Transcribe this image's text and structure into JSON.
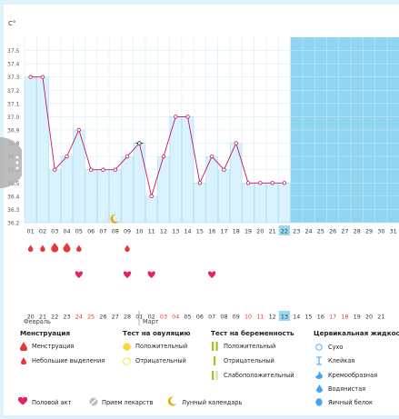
{
  "chart_data": {
    "type": "bar",
    "ylabel": "C°",
    "ylim": [
      36.2,
      37.6
    ],
    "yticks": [
      "37.5",
      "37.4",
      "37.3",
      "37.2",
      "37.1",
      "37.0",
      "36.9",
      "36.8",
      "36.7",
      "36.6",
      "36.5",
      "36.4",
      "36.3",
      "36.2"
    ],
    "day_labels": [
      "01",
      "02",
      "03",
      "04",
      "05",
      "06",
      "07",
      "08",
      "09",
      "10",
      "11",
      "12",
      "13",
      "14",
      "15",
      "16",
      "17",
      "18",
      "19",
      "20",
      "21",
      "22",
      "23",
      "24",
      "25",
      "26",
      "27",
      "28",
      "29",
      "30",
      "31"
    ],
    "values": [
      37.3,
      37.3,
      36.6,
      36.7,
      36.9,
      36.6,
      36.6,
      36.6,
      36.7,
      36.8,
      36.4,
      36.7,
      37.0,
      37.0,
      36.5,
      36.7,
      36.6,
      36.8,
      36.5,
      36.5,
      36.5,
      36.5
    ],
    "marker_colors": [
      "pink",
      "pink",
      "pink",
      "pink",
      "pink",
      "pink",
      "pink",
      "pink",
      "pink",
      "black",
      "pink",
      "pink",
      "pink",
      "pink",
      "pink",
      "pink",
      "pink",
      "pink",
      "pink",
      "pink",
      "pink",
      "pink"
    ],
    "highlight_day_index": 21,
    "moon_day_index": 7,
    "line_color": "#c2185b",
    "bar_color": "#d9f2fd",
    "future_bg": "#8fd5f2",
    "menstruation": [
      {
        "day_index": 0,
        "size": "small"
      },
      {
        "day_index": 1,
        "size": "small"
      },
      {
        "day_index": 2,
        "size": "large"
      },
      {
        "day_index": 3,
        "size": "large"
      },
      {
        "day_index": 4,
        "size": "small"
      },
      {
        "day_index": 8,
        "size": "small"
      }
    ],
    "hearts": [
      4,
      8,
      10,
      15
    ],
    "cycle_labels": [
      "20",
      "21",
      "22",
      "23",
      "24",
      "25",
      "26",
      "27",
      "28",
      "01",
      "02",
      "03",
      "04",
      "05",
      "06",
      "07",
      "08",
      "09",
      "10",
      "11",
      "12",
      "13",
      "14",
      "15",
      "16",
      "17",
      "18",
      "19",
      "20",
      "21"
    ],
    "cycle_red_indices": [
      4,
      5,
      11,
      12,
      18,
      19,
      25,
      26
    ],
    "cycle_highlight_index": 21
  },
  "months": {
    "feb": "Февраль",
    "mar": "Март"
  },
  "legend": {
    "menstruation": {
      "title": "Менструация",
      "items": [
        "Менструация",
        "Небольшие выделения"
      ]
    },
    "ovulation": {
      "title": "Тест на овуляцию",
      "items": [
        "Положительный",
        "Отрицательный"
      ]
    },
    "pregnancy": {
      "title": "Тест на беременность",
      "items": [
        "Положительный",
        "Отрицательный",
        "Слабоположительный"
      ]
    },
    "cervical": {
      "title": "Цервикальная жидкость",
      "items": [
        "Сухо",
        "Клейкая",
        "Кремообразная",
        "Водянистая",
        "Яичный белок"
      ]
    },
    "bottom": [
      "Половой акт",
      "Прием лекарств",
      "Лунный календарь"
    ]
  },
  "colors": {
    "pink": "#e91e63",
    "red": "#e53935",
    "yellow": "#fdd835",
    "green": "#a5c11f",
    "blue": "#42a5f5"
  }
}
